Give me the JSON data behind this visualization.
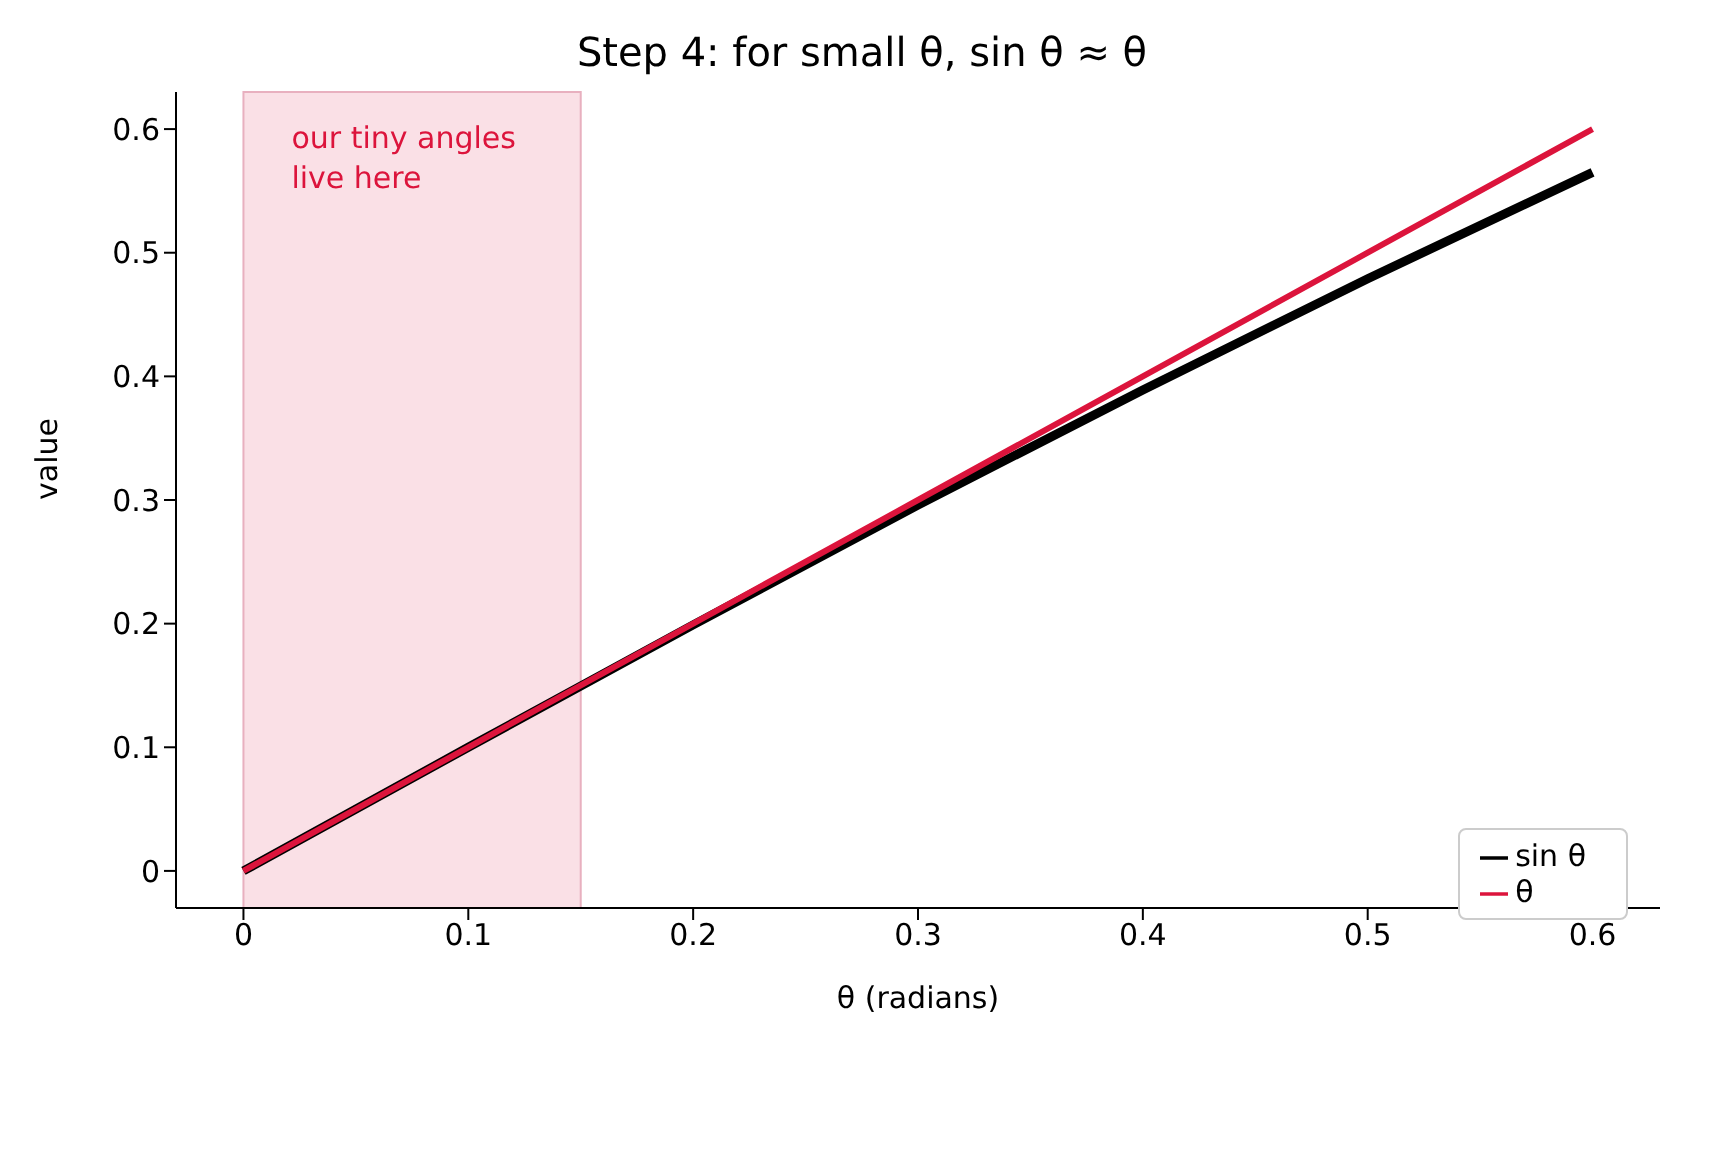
{
  "chart_data": {
    "type": "line",
    "title": "Step 4: for small θ, sin θ ≈ θ",
    "xlabel": "θ (radians)",
    "ylabel": "value",
    "x": [
      0,
      0.1,
      0.2,
      0.3,
      0.4,
      0.5,
      0.6
    ],
    "series": [
      {
        "name": "sin θ",
        "color": "#000000",
        "values": [
          0,
          0.1,
          0.199,
          0.296,
          0.389,
          0.479,
          0.565
        ]
      },
      {
        "name": "θ",
        "color": "#dc143c",
        "values": [
          0,
          0.1,
          0.2,
          0.3,
          0.4,
          0.5,
          0.6
        ]
      }
    ],
    "bands": [
      {
        "axis": "x",
        "from": 0,
        "to": 0.15,
        "label": "our tiny angles\nlive here",
        "color": "#f8d3dc"
      }
    ],
    "xlim": [
      -0.03,
      0.63
    ],
    "ylim": [
      -0.03,
      0.63
    ],
    "xticks": [
      0,
      0.1,
      0.2,
      0.3,
      0.4,
      0.5,
      0.6
    ],
    "yticks": [
      0,
      0.1,
      0.2,
      0.3,
      0.4,
      0.5,
      0.6
    ],
    "legend": "bottom right",
    "marker": "none"
  }
}
